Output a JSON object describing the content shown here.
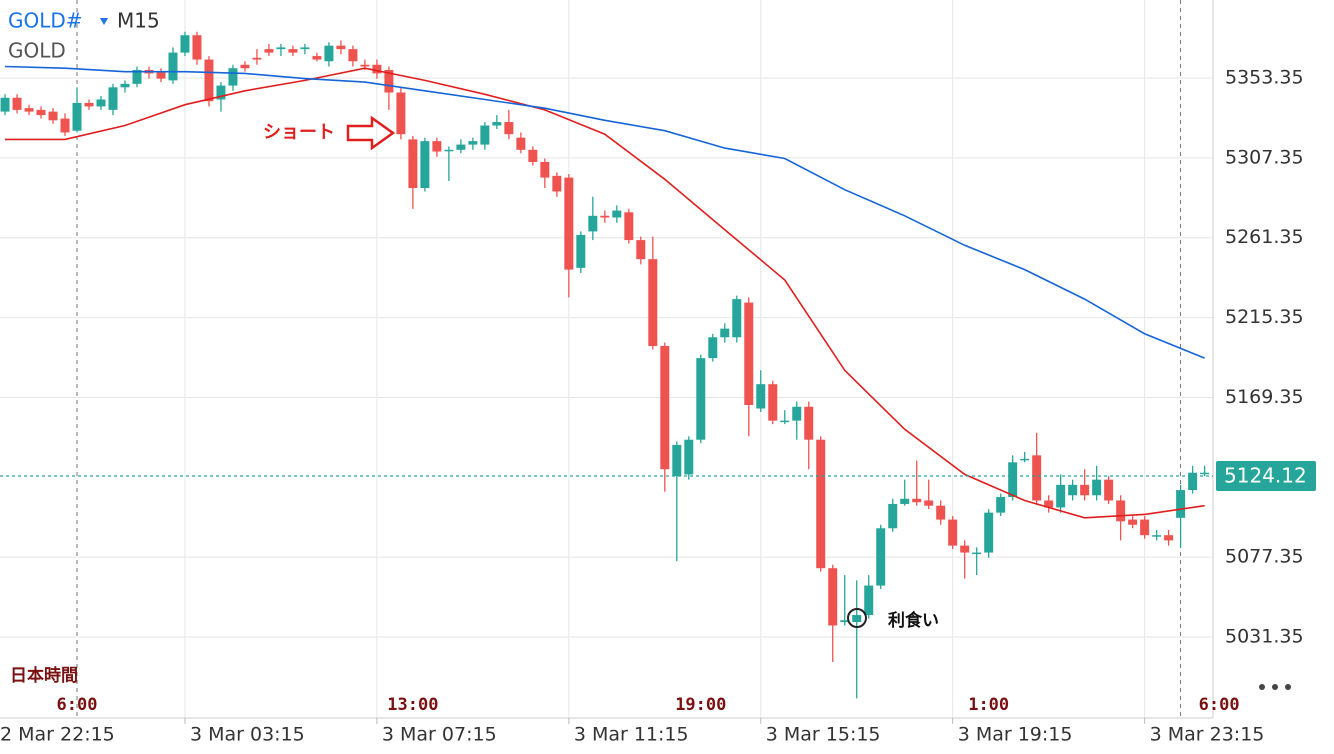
{
  "chart_data": {
    "type": "candlestick",
    "symbol": "GOLD#",
    "timeframe": "M15",
    "subtitle": "GOLD",
    "timezone_label": "日本時間",
    "up_color": "#26a69a",
    "down_color": "#ef5350",
    "grid": true,
    "candles": [
      [
        5334,
        5344,
        5332,
        5342
      ],
      [
        5342,
        5344,
        5333,
        5335
      ],
      [
        5336,
        5338,
        5332,
        5334
      ],
      [
        5335,
        5337,
        5330,
        5332
      ],
      [
        5334,
        5336,
        5327,
        5329
      ],
      [
        5330,
        5333,
        5320,
        5322
      ],
      [
        5323,
        5348,
        5322,
        5339
      ],
      [
        5339,
        5341,
        5335,
        5337
      ],
      [
        5337,
        5343,
        5335,
        5341
      ],
      [
        5335,
        5350,
        5332,
        5348
      ],
      [
        5348,
        5352,
        5345,
        5350
      ],
      [
        5350,
        5360,
        5348,
        5358
      ],
      [
        5358,
        5360,
        5353,
        5356
      ],
      [
        5357,
        5359,
        5351,
        5353
      ],
      [
        5352,
        5371,
        5350,
        5368
      ],
      [
        5368,
        5380,
        5366,
        5378
      ],
      [
        5378,
        5380,
        5361,
        5364
      ],
      [
        5364,
        5366,
        5337,
        5340
      ],
      [
        5341,
        5351,
        5334,
        5349
      ],
      [
        5349,
        5361,
        5346,
        5359
      ],
      [
        5361,
        5363,
        5357,
        5359
      ],
      [
        5365,
        5370,
        5361,
        5364
      ],
      [
        5370,
        5373,
        5366,
        5368
      ],
      [
        5370,
        5373,
        5366,
        5371
      ],
      [
        5370,
        5372,
        5366,
        5368
      ],
      [
        5370,
        5373,
        5367,
        5371
      ],
      [
        5366,
        5368,
        5363,
        5364
      ],
      [
        5363,
        5374,
        5360,
        5372
      ],
      [
        5372,
        5375,
        5367,
        5370
      ],
      [
        5370,
        5372,
        5360,
        5363
      ],
      [
        5361,
        5364,
        5358,
        5360
      ],
      [
        5361,
        5364,
        5353,
        5356
      ],
      [
        5358,
        5360,
        5335,
        5345
      ],
      [
        5345,
        5348,
        5318,
        5321
      ],
      [
        5318,
        5320,
        5278,
        5290
      ],
      [
        5290,
        5319,
        5288,
        5317
      ],
      [
        5317,
        5319,
        5308,
        5311
      ],
      [
        5312,
        5314,
        5294,
        5312
      ],
      [
        5312,
        5318,
        5310,
        5315
      ],
      [
        5315,
        5319,
        5312,
        5317
      ],
      [
        5315,
        5328,
        5312,
        5326
      ],
      [
        5326,
        5332,
        5324,
        5328
      ],
      [
        5328,
        5335,
        5318,
        5321
      ],
      [
        5319,
        5322,
        5310,
        5312
      ],
      [
        5312,
        5314,
        5303,
        5305
      ],
      [
        5305,
        5307,
        5290,
        5296
      ],
      [
        5297,
        5299,
        5285,
        5288
      ],
      [
        5296,
        5298,
        5227,
        5243
      ],
      [
        5244,
        5265,
        5241,
        5263
      ],
      [
        5265,
        5285,
        5260,
        5274
      ],
      [
        5274,
        5277,
        5270,
        5273
      ],
      [
        5273,
        5280,
        5270,
        5277
      ],
      [
        5276,
        5278,
        5258,
        5260
      ],
      [
        5260,
        5262,
        5246,
        5249
      ],
      [
        5249,
        5262,
        5197,
        5199
      ],
      [
        5199,
        5201,
        5115,
        5128
      ],
      [
        5124,
        5144,
        5075,
        5142
      ],
      [
        5125,
        5147,
        5122,
        5145
      ],
      [
        5145,
        5194,
        5143,
        5192
      ],
      [
        5192,
        5206,
        5190,
        5204
      ],
      [
        5204,
        5212,
        5201,
        5209
      ],
      [
        5204,
        5228,
        5201,
        5226
      ],
      [
        5224,
        5227,
        5147,
        5165
      ],
      [
        5163,
        5185,
        5161,
        5177
      ],
      [
        5177,
        5179,
        5154,
        5156
      ],
      [
        5156,
        5162,
        5154,
        5156
      ],
      [
        5156,
        5167,
        5145,
        5164
      ],
      [
        5164,
        5167,
        5128,
        5145
      ],
      [
        5145,
        5147,
        5069,
        5071
      ],
      [
        5071,
        5073,
        5017,
        5038
      ],
      [
        5040,
        5067,
        5038,
        5041
      ],
      [
        5040,
        5064,
        4996,
        5044
      ],
      [
        5044,
        5067,
        5042,
        5061
      ],
      [
        5061,
        5096,
        5059,
        5094
      ],
      [
        5094,
        5111,
        5092,
        5108
      ],
      [
        5108,
        5122,
        5107,
        5111
      ],
      [
        5111,
        5133,
        5107,
        5109
      ],
      [
        5110,
        5122,
        5105,
        5107
      ],
      [
        5107,
        5110,
        5096,
        5099
      ],
      [
        5099,
        5101,
        5082,
        5084
      ],
      [
        5084,
        5087,
        5065,
        5080
      ],
      [
        5080,
        5083,
        5067,
        5080
      ],
      [
        5080,
        5105,
        5077,
        5103
      ],
      [
        5103,
        5114,
        5101,
        5112
      ],
      [
        5112,
        5136,
        5110,
        5132
      ],
      [
        5134,
        5138,
        5132,
        5134
      ],
      [
        5136,
        5149,
        5108,
        5110
      ],
      [
        5110,
        5113,
        5103,
        5106
      ],
      [
        5106,
        5125,
        5103,
        5119
      ],
      [
        5113,
        5122,
        5110,
        5119
      ],
      [
        5119,
        5128,
        5110,
        5113
      ],
      [
        5113,
        5130,
        5110,
        5122
      ],
      [
        5122,
        5124,
        5108,
        5110
      ],
      [
        5110,
        5113,
        5087,
        5098
      ],
      [
        5099,
        5101,
        5094,
        5096
      ],
      [
        5099,
        5101,
        5088,
        5090
      ],
      [
        5090,
        5093,
        5087,
        5090
      ],
      [
        5090,
        5093,
        5084,
        5087
      ],
      [
        5100,
        5119,
        5083,
        5116
      ],
      [
        5116,
        5130,
        5114,
        5126
      ],
      [
        5126,
        5130,
        5124,
        5126
      ]
    ],
    "ma_x": [
      0,
      5,
      10,
      15,
      20,
      25,
      30,
      35,
      40,
      45,
      50,
      55,
      60,
      65,
      70,
      75,
      80,
      85,
      90,
      95,
      100
    ],
    "series": [
      {
        "color": "#e01e1e",
        "values": [
          5318,
          5318,
          5326,
          5338,
          5346,
          5352,
          5359,
          5352,
          5344,
          5335,
          5321,
          5295,
          5266,
          5237,
          5185,
          5151,
          5125,
          5110,
          5100,
          5102,
          5107
        ]
      },
      {
        "color": "#1565d8",
        "values": [
          5360,
          5359,
          5357,
          5357,
          5356,
          5353,
          5351,
          5346,
          5341,
          5336,
          5329,
          5323,
          5313,
          5307,
          5289,
          5274,
          5257,
          5243,
          5226,
          5206,
          5192
        ]
      }
    ],
    "current_price": 5124.12,
    "current_price_color": "#26a69a",
    "ylim": [
      4984.7,
      5398.3
    ],
    "yticks": [
      5031.35,
      5077.35,
      5169.35,
      5215.35,
      5261.35,
      5307.35,
      5353.35
    ],
    "xlim": [
      -0.42,
      100.7
    ],
    "xticks": [
      {
        "value": -5,
        "label": "2 Mar 22:15"
      },
      {
        "value": 15,
        "label": "3 Mar 03:15"
      },
      {
        "value": 31,
        "label": "3 Mar 07:15"
      },
      {
        "value": 47,
        "label": "3 Mar 11:15"
      },
      {
        "value": 63,
        "label": "3 Mar 15:15"
      },
      {
        "value": 79,
        "label": "3 Mar 19:15"
      },
      {
        "value": 95,
        "label": "3 Mar 23:15"
      }
    ],
    "jst_ticks": [
      {
        "value": 6,
        "label": "6:00"
      },
      {
        "value": 34,
        "label": "13:00"
      },
      {
        "value": 58,
        "label": "19:00"
      },
      {
        "value": 82,
        "label": "1:00"
      },
      {
        "value": 98,
        "label": "6:00"
      }
    ],
    "annotations": {
      "short": "ショート",
      "take_profit": "利食い"
    }
  }
}
